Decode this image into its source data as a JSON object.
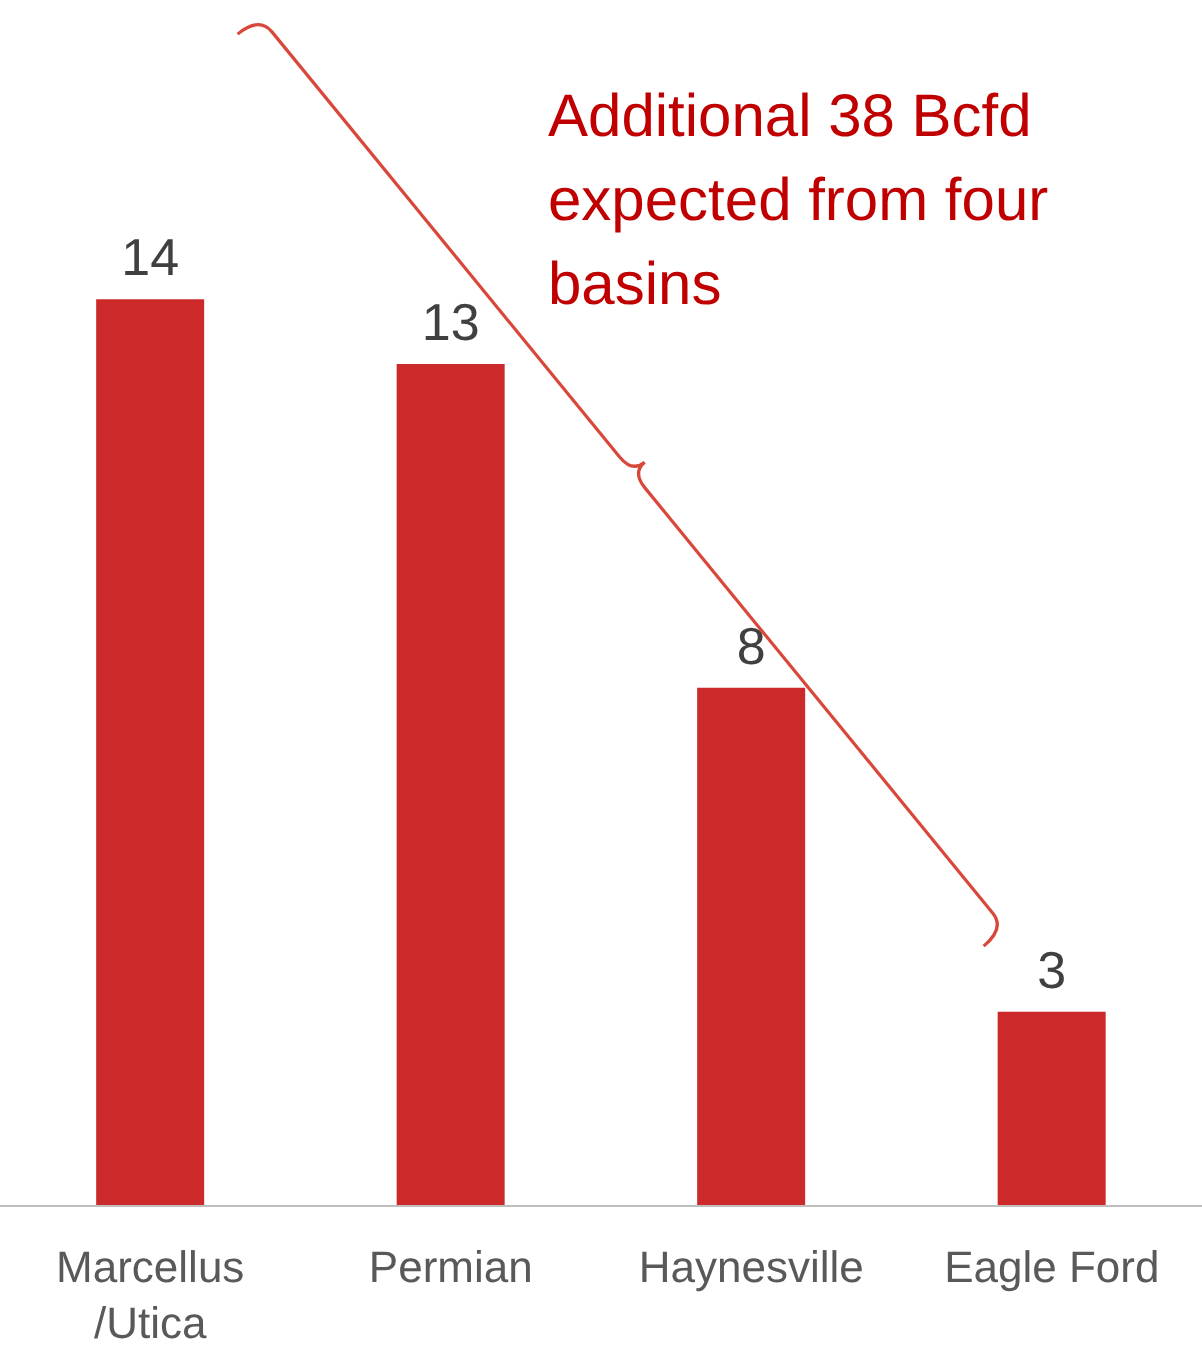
{
  "chart_data": {
    "type": "bar",
    "categories": [
      "Marcellus\n/Utica",
      "Permian",
      "Haynesville",
      "Eagle Ford"
    ],
    "values": [
      14,
      13,
      8,
      3
    ],
    "color": "#cc2a2a",
    "data_labels": true,
    "annotations": [
      "Additional 38 Bcfd expected from four basins"
    ]
  }
}
